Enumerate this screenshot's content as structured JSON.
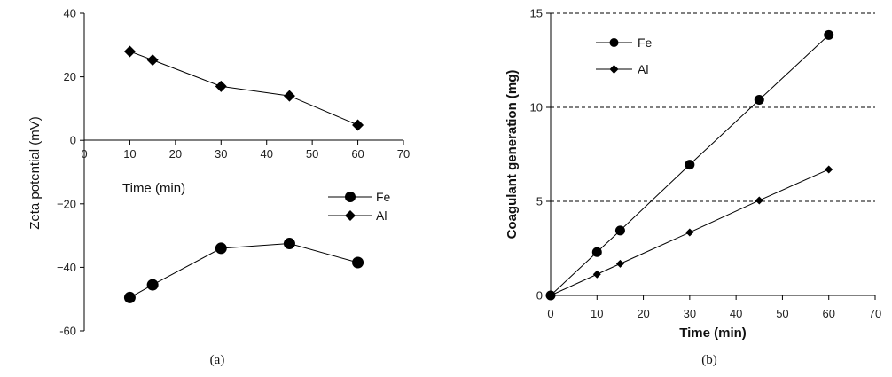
{
  "chart_data": [
    {
      "type": "line",
      "caption": "(a)",
      "xlabel": "Time (min)",
      "ylabel": "Zeta potential (mV)",
      "xlim": [
        0,
        70
      ],
      "ylim": [
        -60,
        40
      ],
      "xticks": [
        0,
        10,
        20,
        30,
        40,
        50,
        60,
        70
      ],
      "yticks": [
        40,
        20,
        0,
        -20,
        -40,
        -60
      ],
      "ytick_labels": [
        "40",
        "20",
        "0",
        "−20",
        "−40",
        "-60"
      ],
      "grid": false,
      "legend_position": "right",
      "x": [
        10,
        15,
        30,
        45,
        60
      ],
      "series": [
        {
          "name": "Fe",
          "marker": "circle",
          "values": [
            -49.5,
            -45.5,
            -34,
            -32.5,
            -38.5
          ]
        },
        {
          "name": "Al",
          "marker": "diamond",
          "values": [
            28,
            25.3,
            17,
            14,
            4.8
          ]
        }
      ]
    },
    {
      "type": "line",
      "caption": "(b)",
      "xlabel": "Time (min)",
      "ylabel": "Coagulant generation (mg)",
      "xlim": [
        0,
        70
      ],
      "ylim": [
        0,
        15
      ],
      "xticks": [
        0,
        10,
        20,
        30,
        40,
        50,
        60,
        70
      ],
      "yticks": [
        0,
        5,
        10,
        15
      ],
      "ytick_labels": [
        "0",
        "5",
        "10",
        "15"
      ],
      "grid": "horizontal dashed",
      "legend_position": "top-left",
      "x": [
        0,
        10,
        15,
        30,
        45,
        60
      ],
      "series": [
        {
          "name": "Fe",
          "marker": "circle",
          "values": [
            0,
            2.3,
            3.45,
            6.95,
            10.4,
            13.85
          ]
        },
        {
          "name": "Al",
          "marker": "diamond",
          "values": [
            0,
            1.12,
            1.68,
            3.35,
            5.05,
            6.7
          ]
        }
      ]
    }
  ]
}
